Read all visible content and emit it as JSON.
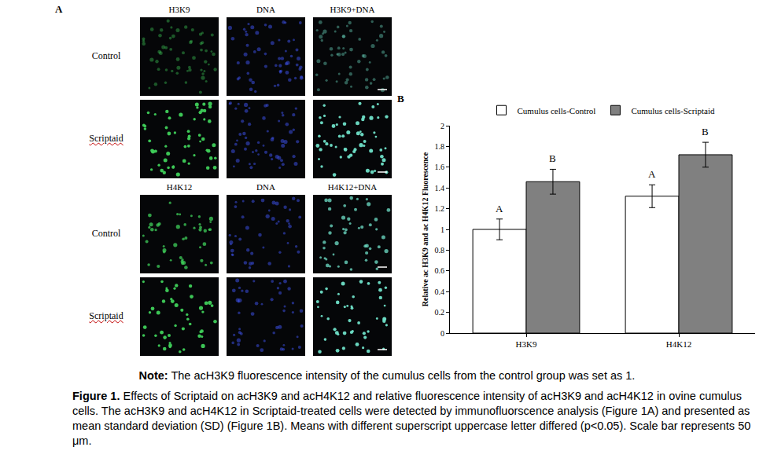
{
  "panel_a": {
    "label": "A",
    "blocks": [
      {
        "columns": [
          "H3K9",
          "DNA",
          "H3K9+DNA"
        ],
        "rows": [
          "Control",
          "Scriptaid"
        ]
      },
      {
        "columns": [
          "H4K12",
          "DNA",
          "H4K12+DNA"
        ],
        "rows": [
          "Control",
          "Scriptaid"
        ]
      }
    ]
  },
  "chart_data": {
    "panel_label": "B",
    "type": "bar",
    "categories": [
      "H3K9",
      "H4K12"
    ],
    "y_label": "Relative ac H3K9 and ac H4K12 Fluorescence",
    "ylim": [
      0,
      2
    ],
    "yticks": [
      0,
      0.2,
      0.4,
      0.6,
      0.8,
      1,
      1.2,
      1.4,
      1.6,
      1.8,
      2
    ],
    "legend": "top",
    "grid": false,
    "series": [
      {
        "name": "Cumulus cells-Control",
        "color": "#ffffff",
        "values": [
          1,
          1.32
        ],
        "errors": [
          0.1,
          0.11
        ],
        "letters": [
          "A",
          "A"
        ]
      },
      {
        "name": "Cumulus cells-Scriptaid",
        "color": "#808080",
        "values": [
          1.46,
          1.72
        ],
        "errors": [
          0.12,
          0.12
        ],
        "letters": [
          "B",
          "B"
        ]
      }
    ]
  },
  "note": {
    "lead": "Note:",
    "text": " The acH3K9 fluorescence intensity of the cumulus cells from the control group was set as 1."
  },
  "caption": {
    "lead": "Figure 1.",
    "text": " Effects of Scriptaid on acH3K9 and acH4K12 and relative fluorescence intensity of acH3K9 and acH4K12 in ovine cumulus cells. The acH3K9 and acH4K12 in Scriptaid-treated cells were detected by immunofluorscence analysis (Figure 1A) and presented as mean standard deviation (SD) (Figure 1B). Means with different superscript uppercase letter differed (p<0.05). Scale bar represents 50 μm."
  }
}
